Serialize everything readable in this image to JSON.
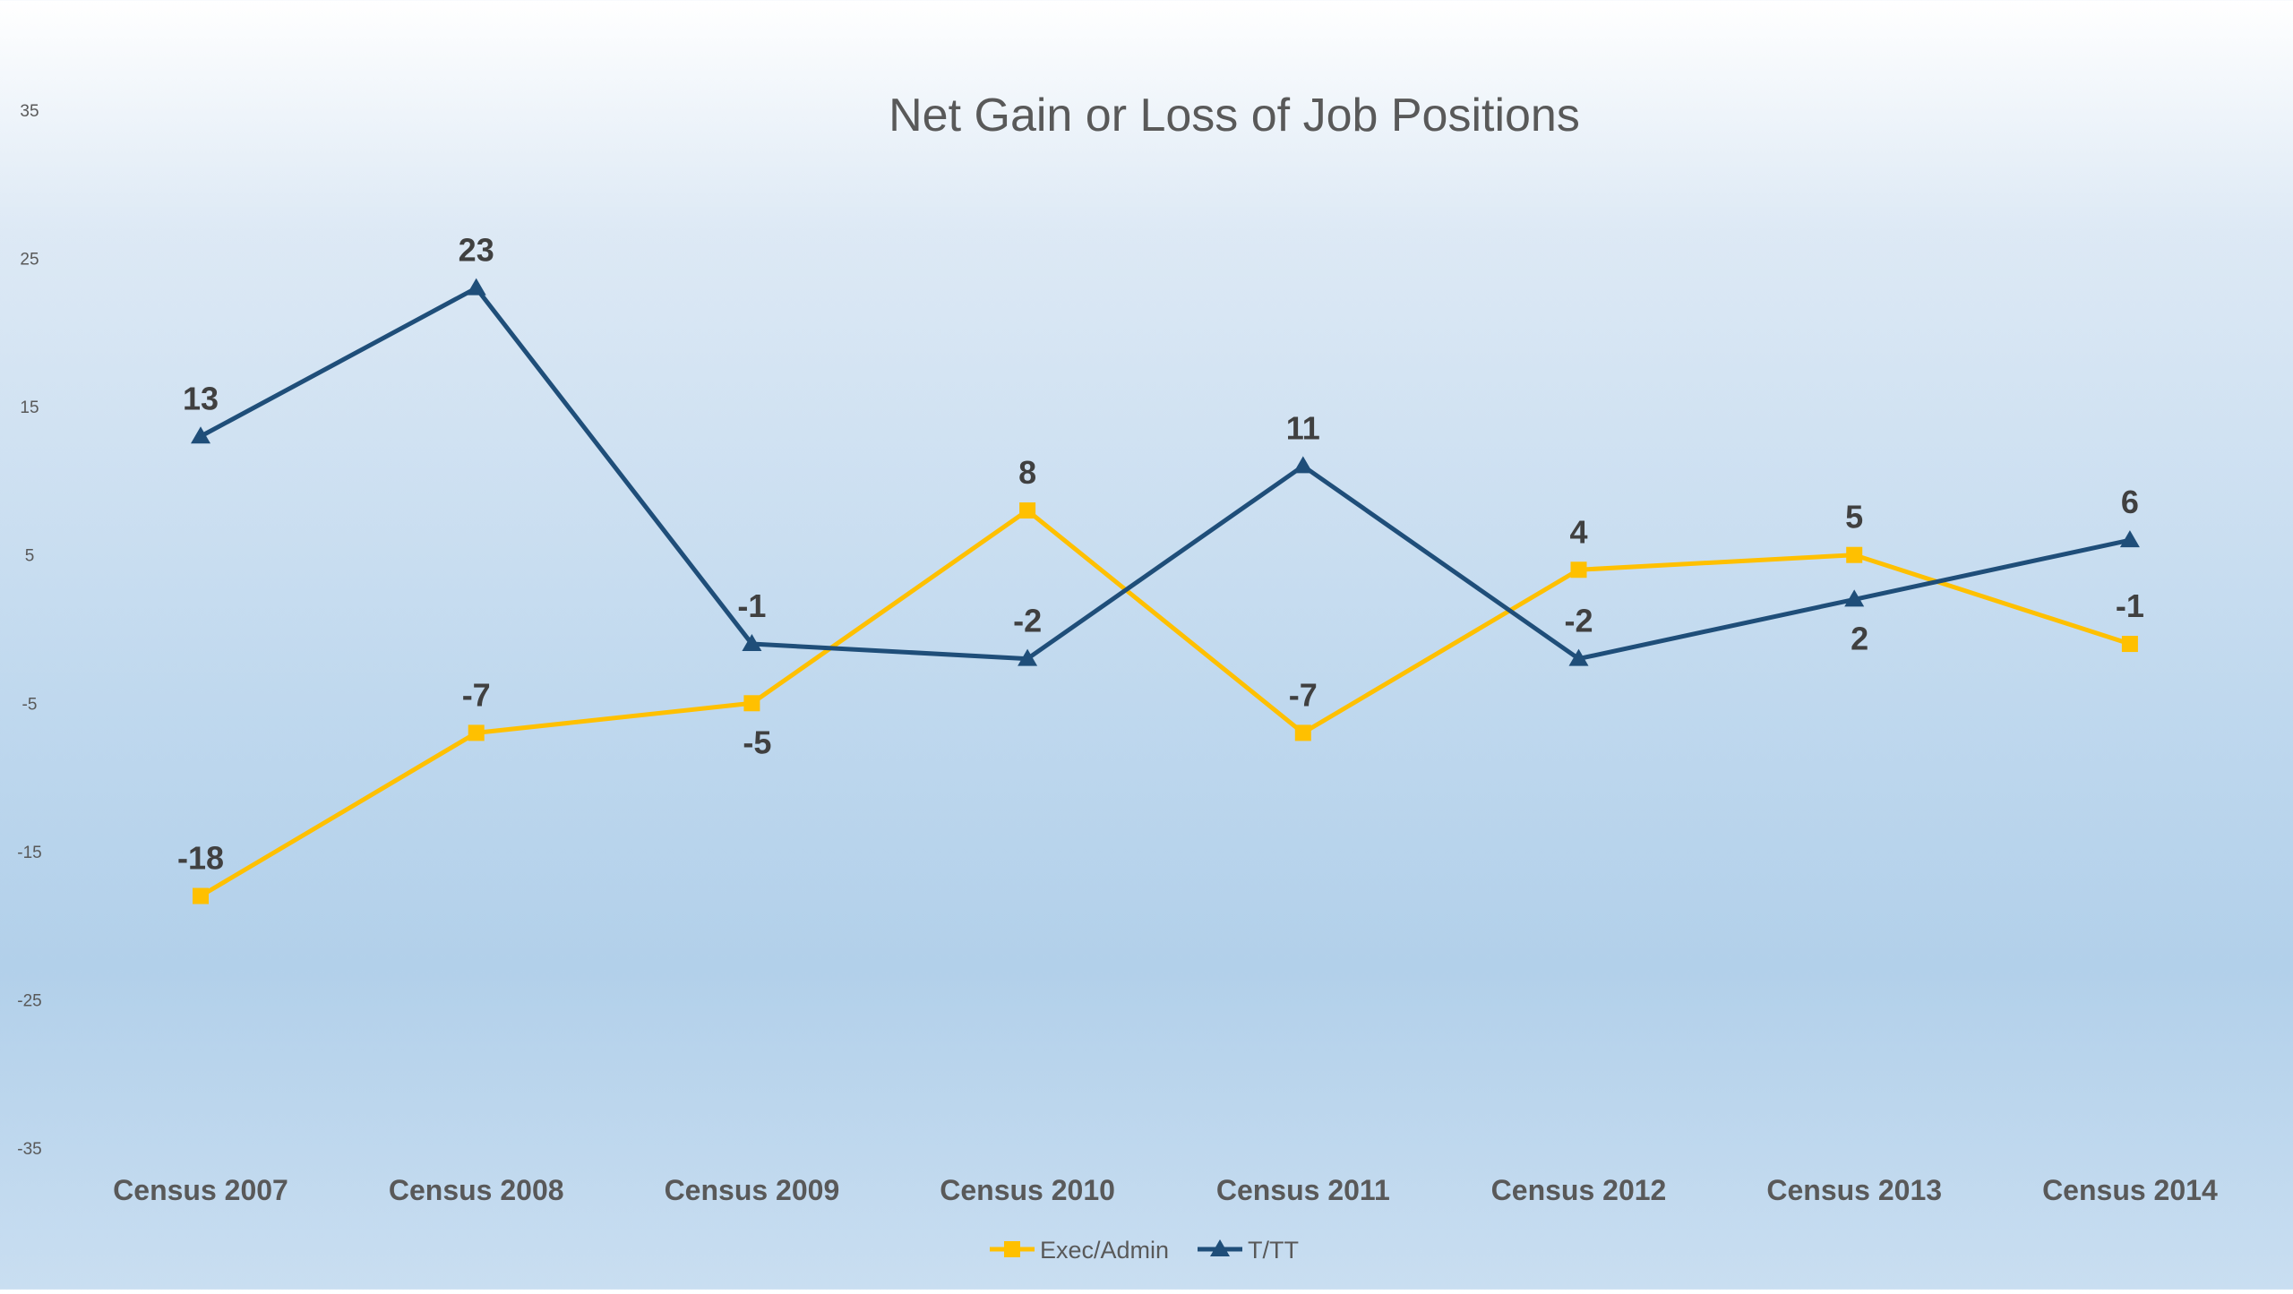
{
  "chart_data": {
    "type": "line",
    "title": "Net Gain or Loss of Job Positions",
    "categories": [
      "Census 2007",
      "Census 2008",
      "Census 2009",
      "Census 2010",
      "Census 2011",
      "Census 2012",
      "Census 2013",
      "Census 2014"
    ],
    "series": [
      {
        "name": "Exec/Admin",
        "values": [
          -18,
          -7,
          -5,
          8,
          -7,
          4,
          5,
          -1
        ],
        "color": "#ffc000",
        "marker": "square",
        "label_position": [
          "above",
          "above",
          "below",
          "above",
          "above",
          "above",
          "above",
          "above"
        ]
      },
      {
        "name": "T/TT",
        "values": [
          13,
          23,
          -1,
          -2,
          11,
          -2,
          2,
          6
        ],
        "color": "#1f4e79",
        "marker": "triangle",
        "label_position": [
          "above",
          "above",
          "above",
          "above",
          "above",
          "above",
          "below",
          "above"
        ]
      }
    ],
    "ylim": [
      -35,
      35
    ],
    "yticks": [
      35,
      25,
      15,
      5,
      -5,
      -15,
      -25,
      -35
    ],
    "gridlines": false,
    "legend": "bottom-center",
    "xlabel": "",
    "ylabel": ""
  }
}
